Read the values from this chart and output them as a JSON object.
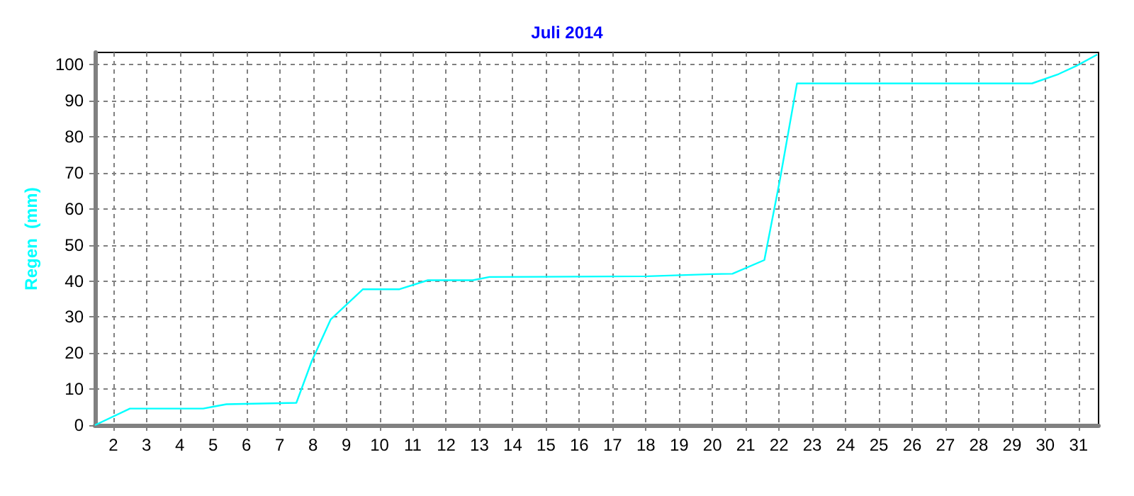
{
  "chart_data": {
    "type": "line",
    "title": "Juli 2014",
    "ylabel": "Regen  (mm)",
    "xlim": [
      1.45,
      31.6
    ],
    "ylim": [
      0,
      103.4
    ],
    "xticks": [
      2,
      3,
      4,
      5,
      6,
      7,
      8,
      9,
      10,
      11,
      12,
      13,
      14,
      15,
      16,
      17,
      18,
      19,
      20,
      21,
      22,
      23,
      24,
      25,
      26,
      27,
      28,
      29,
      30,
      31
    ],
    "yticks": [
      0,
      10,
      20,
      30,
      40,
      50,
      60,
      70,
      80,
      90,
      100
    ],
    "grid": true,
    "marker": "none",
    "line_style": "solid",
    "series": [
      {
        "color": "#00ffff",
        "x": [
          1.45,
          2.5,
          4.7,
          5.05,
          5.4,
          7.5,
          7.96,
          8.53,
          9.5,
          10.6,
          11.45,
          12.8,
          13.3,
          18.05,
          20.0,
          20.6,
          21.56,
          22.03,
          22.54,
          29.6,
          30.4,
          30.96,
          31.56
        ],
        "values": [
          0,
          4.6,
          4.6,
          5.2,
          5.8,
          6.2,
          17.7,
          29.3,
          37.7,
          37.7,
          40.2,
          40.2,
          41.1,
          41.3,
          41.9,
          42,
          45.8,
          68.2,
          94.8,
          94.8,
          97.4,
          99.8,
          102.8
        ]
      }
    ]
  }
}
